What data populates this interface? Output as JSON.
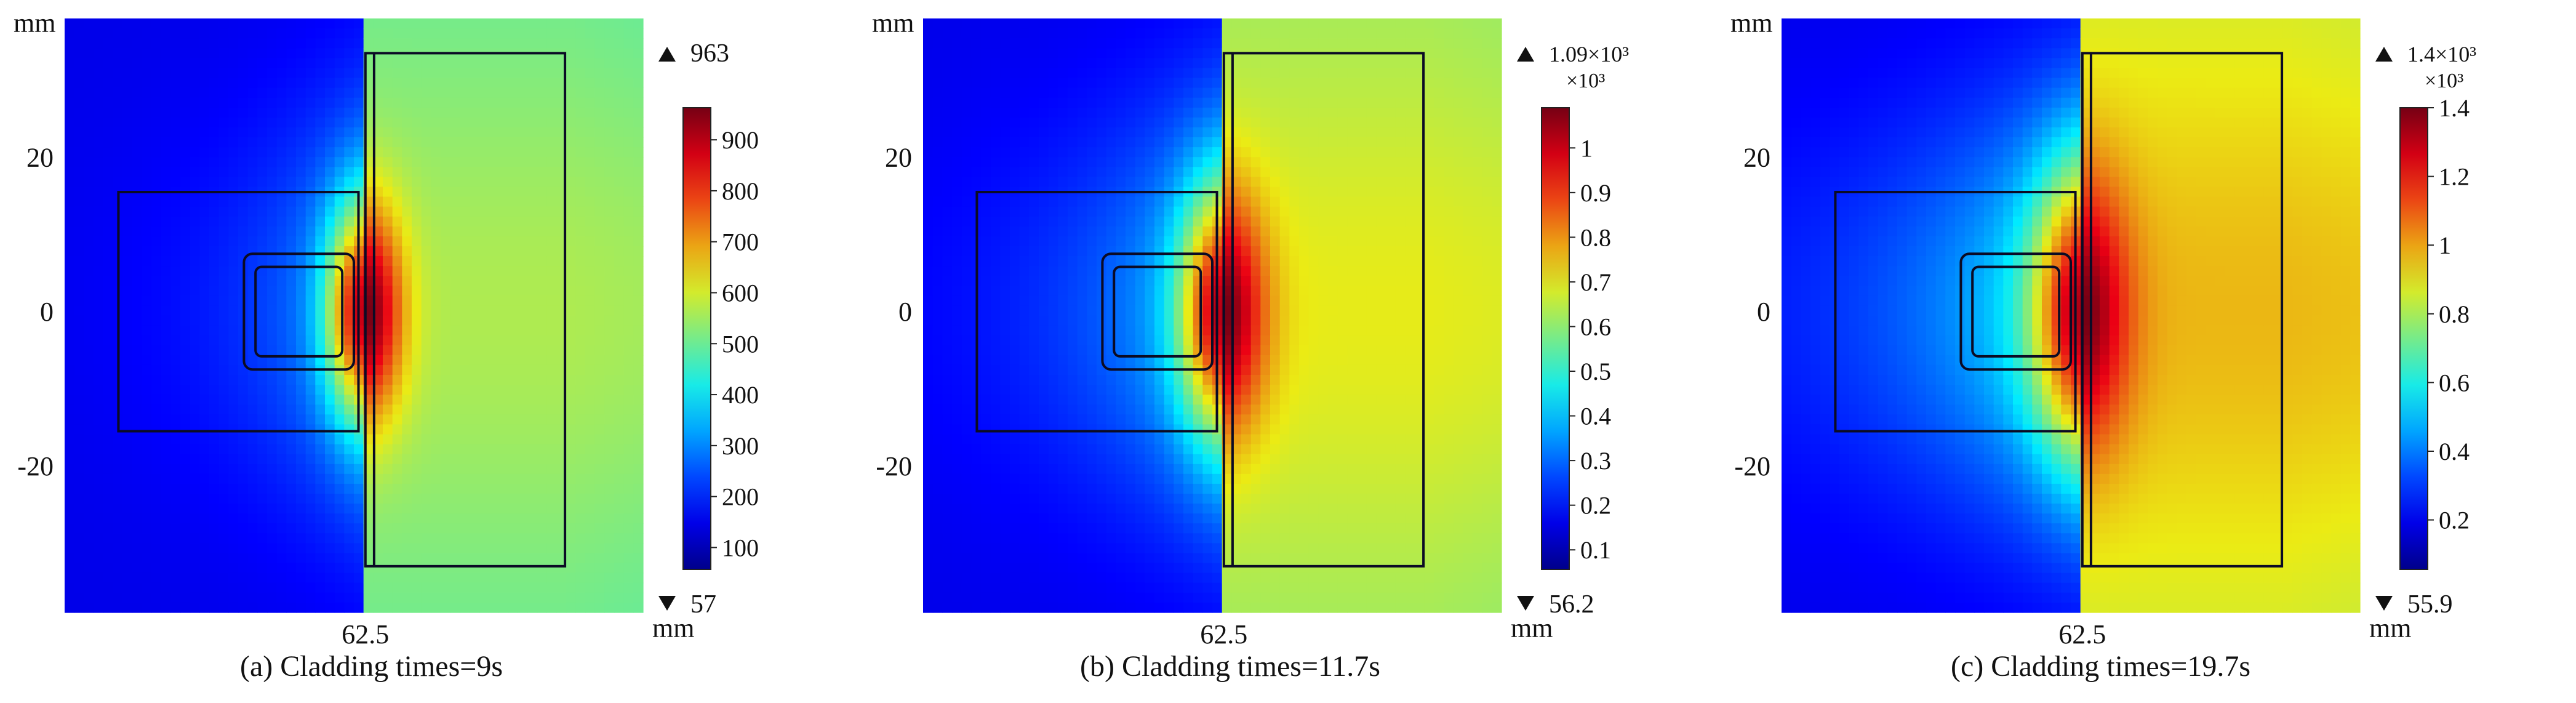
{
  "chart_data": [
    {
      "type": "heatmap",
      "caption": "(a)  Cladding times=9s",
      "axis_unit_y": "mm",
      "axis_unit_x": "mm",
      "y_ticks": [
        20,
        0,
        -20
      ],
      "y_tick_labels": [
        "20",
        "0",
        "-20"
      ],
      "x_ticks": [
        62.5
      ],
      "x_tick_labels": [
        "62.5"
      ],
      "ylim": [
        -39,
        38
      ],
      "colorbar": {
        "max_label": "963",
        "min_label": "57",
        "multiplier": "",
        "min": 57,
        "max": 963,
        "ticks": [
          100,
          200,
          300,
          400,
          500,
          600,
          700,
          800,
          900
        ],
        "tick_labels": [
          "100",
          "200",
          "300",
          "400",
          "500",
          "600",
          "700",
          "800",
          "900"
        ]
      },
      "field": {
        "background": 0.1,
        "peak": 1.0,
        "plate": 0.56,
        "spread": 1.0
      }
    },
    {
      "type": "heatmap",
      "caption": "(b)  Cladding times=11.7s",
      "axis_unit_y": "mm",
      "axis_unit_x": "mm",
      "y_ticks": [
        20,
        0,
        -20
      ],
      "y_tick_labels": [
        "20",
        "0",
        "-20"
      ],
      "x_ticks": [
        62.5
      ],
      "x_tick_labels": [
        "62.5"
      ],
      "ylim": [
        -39,
        38
      ],
      "colorbar": {
        "max_label": "1.09×10³",
        "min_label": "56.2",
        "multiplier": "×10³",
        "min": 56.2,
        "max": 1090,
        "ticks": [
          0.1,
          0.2,
          0.3,
          0.4,
          0.5,
          0.6,
          0.7,
          0.8,
          0.9,
          1
        ],
        "tick_labels": [
          "0.1",
          "0.2",
          "0.3",
          "0.4",
          "0.5",
          "0.6",
          "0.7",
          "0.8",
          "0.9",
          "1"
        ]
      },
      "field": {
        "background": 0.1,
        "peak": 1.0,
        "plate": 0.62,
        "spread": 1.25
      }
    },
    {
      "type": "heatmap",
      "caption": "(c)  Cladding times=19.7s",
      "axis_unit_y": "mm",
      "axis_unit_x": "mm",
      "y_ticks": [
        20,
        0,
        -20
      ],
      "y_tick_labels": [
        "20",
        "0",
        "-20"
      ],
      "x_ticks": [
        62.5
      ],
      "x_tick_labels": [
        "62.5"
      ],
      "ylim": [
        -39,
        38
      ],
      "colorbar": {
        "max_label": "1.4×10³",
        "min_label": "55.9",
        "multiplier": "×10³",
        "min": 55.9,
        "max": 1400,
        "ticks": [
          0.2,
          0.4,
          0.6,
          0.8,
          1,
          1.2,
          1.4
        ],
        "tick_labels": [
          "0.2",
          "0.4",
          "0.6",
          "0.8",
          "1",
          "1.2",
          "1.4"
        ]
      },
      "field": {
        "background": 0.1,
        "peak": 1.0,
        "plate": 0.68,
        "spread": 1.55
      }
    }
  ]
}
